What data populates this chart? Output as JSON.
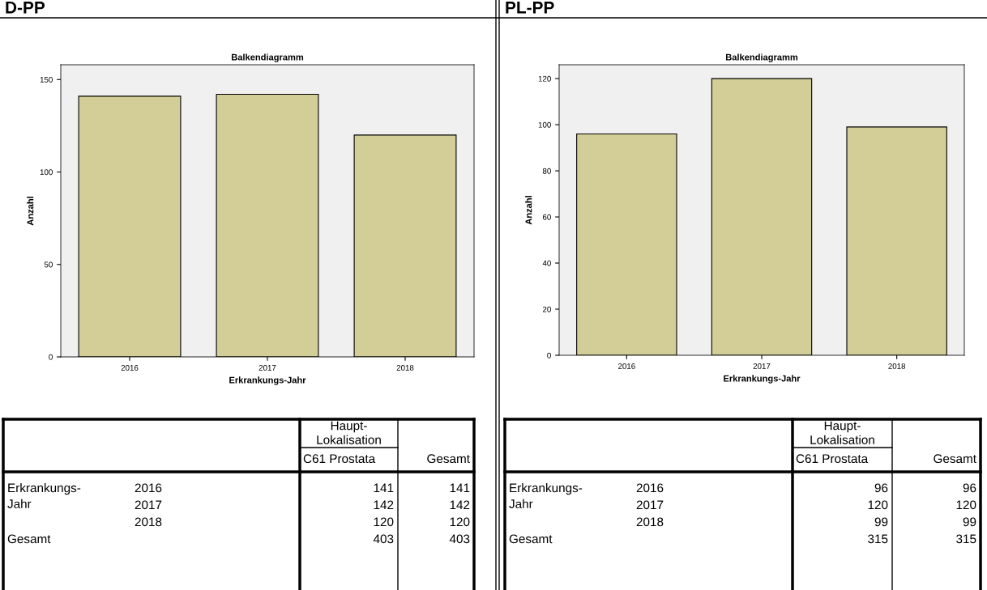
{
  "chart_data": [
    {
      "type": "bar",
      "title": "D-PP",
      "subtitle": "Balkendiagramm",
      "xlabel": "Erkrankungs-Jahr",
      "ylabel": "Anzahl",
      "categories": [
        "2016",
        "2017",
        "2018"
      ],
      "values": [
        141,
        142,
        120
      ],
      "color": "#d3ce97",
      "ylim": [
        0,
        158
      ],
      "yticks": [
        0,
        50,
        100,
        150
      ],
      "grid": false,
      "annotations": [
        "Haupt-\nLokalisation",
        "C61 Prostata",
        "Gesamt",
        "Erkrankungs-\nJahr",
        "Gesamt",
        "141",
        "141",
        "142",
        "142",
        "120",
        "120",
        "403",
        "403"
      ]
    },
    {
      "type": "bar",
      "title": "PL-PP",
      "subtitle": "Balkendiagramm",
      "xlabel": "Erkrankungs-Jahr",
      "ylabel": "Anzahl",
      "categories": [
        "2016",
        "2017",
        "2018"
      ],
      "values": [
        96,
        120,
        99
      ],
      "color": "#d3ce97",
      "ylim": [
        0,
        126
      ],
      "yticks": [
        0,
        20,
        40,
        60,
        80,
        100,
        120
      ],
      "grid": false,
      "annotations": [
        "Haupt-\nLokalisation",
        "C61 Prostata",
        "Gesamt",
        "Erkrankungs-\nJahr",
        "Gesamt",
        "96",
        "96",
        "120",
        "120",
        "99",
        "99",
        "315",
        "315"
      ]
    }
  ]
}
